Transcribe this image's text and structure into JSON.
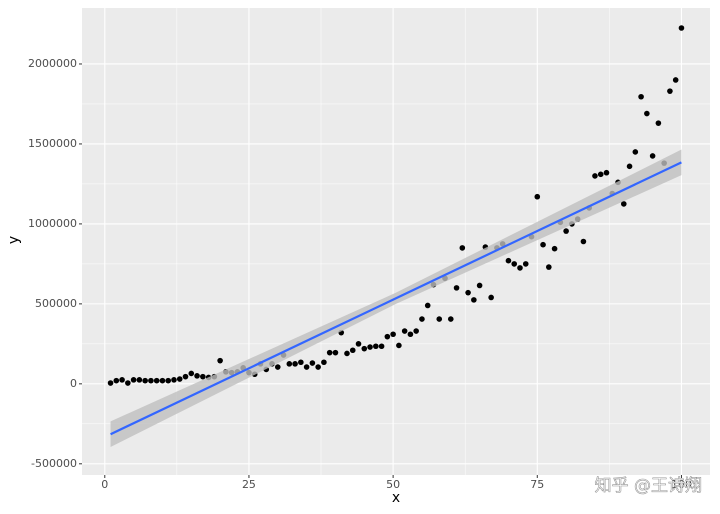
{
  "chart_data": {
    "type": "scatter",
    "x_label": "x",
    "y_label": "y",
    "x": [
      1,
      2,
      3,
      4,
      5,
      6,
      7,
      8,
      9,
      10,
      11,
      12,
      13,
      14,
      15,
      16,
      17,
      18,
      19,
      20,
      21,
      22,
      23,
      24,
      25,
      26,
      27,
      28,
      29,
      30,
      31,
      32,
      33,
      34,
      35,
      36,
      37,
      38,
      39,
      40,
      41,
      42,
      43,
      44,
      45,
      46,
      47,
      48,
      49,
      50,
      51,
      52,
      53,
      54,
      55,
      56,
      57,
      58,
      59,
      60,
      61,
      62,
      63,
      64,
      65,
      66,
      67,
      68,
      69,
      70,
      71,
      72,
      73,
      74,
      75,
      76,
      77,
      78,
      79,
      80,
      81,
      82,
      83,
      84,
      85,
      86,
      87,
      88,
      89,
      90,
      91,
      92,
      93,
      94,
      95,
      96,
      97,
      98,
      99,
      100
    ],
    "values": [
      5000,
      20000,
      25000,
      5000,
      25000,
      25000,
      20000,
      20000,
      20000,
      20000,
      20000,
      25000,
      30000,
      45000,
      65000,
      50000,
      45000,
      40000,
      45000,
      145000,
      75000,
      70000,
      75000,
      100000,
      70000,
      60000,
      125000,
      90000,
      125000,
      105000,
      180000,
      125000,
      125000,
      135000,
      105000,
      130000,
      105000,
      135000,
      195000,
      195000,
      320000,
      190000,
      210000,
      250000,
      220000,
      230000,
      235000,
      235000,
      295000,
      310000,
      240000,
      330000,
      310000,
      330000,
      405000,
      490000,
      620000,
      405000,
      660000,
      405000,
      600000,
      850000,
      570000,
      525000,
      615000,
      855000,
      540000,
      850000,
      875000,
      770000,
      750000,
      725000,
      750000,
      920000,
      1170000,
      870000,
      730000,
      845000,
      1010000,
      955000,
      1000000,
      1030000,
      890000,
      1100000,
      1300000,
      1310000,
      1320000,
      1190000,
      1260000,
      1125000,
      1360000,
      1450000,
      1795000,
      1690000,
      1425000,
      1630000,
      1380000,
      1830000,
      1900000,
      2225000
    ],
    "color": "#000000",
    "fit": {
      "color": "#3366ff",
      "band_color": "#bfbfbf",
      "x": [
        1,
        50.5,
        100
      ],
      "values": [
        -315000,
        535000,
        1385000
      ],
      "lower": [
        -395000,
        500000,
        1305000
      ],
      "upper": [
        -235000,
        570000,
        1465000
      ]
    },
    "xlim": [
      -3.95,
      104.95
    ],
    "ylim": [
      -570000,
      2350000
    ],
    "xticks": [
      0,
      25,
      50,
      75,
      100
    ],
    "yticks": [
      -500000,
      0,
      500000,
      1000000,
      1500000,
      2000000
    ],
    "grid": true,
    "watermark": "知乎 @王诗翔"
  }
}
